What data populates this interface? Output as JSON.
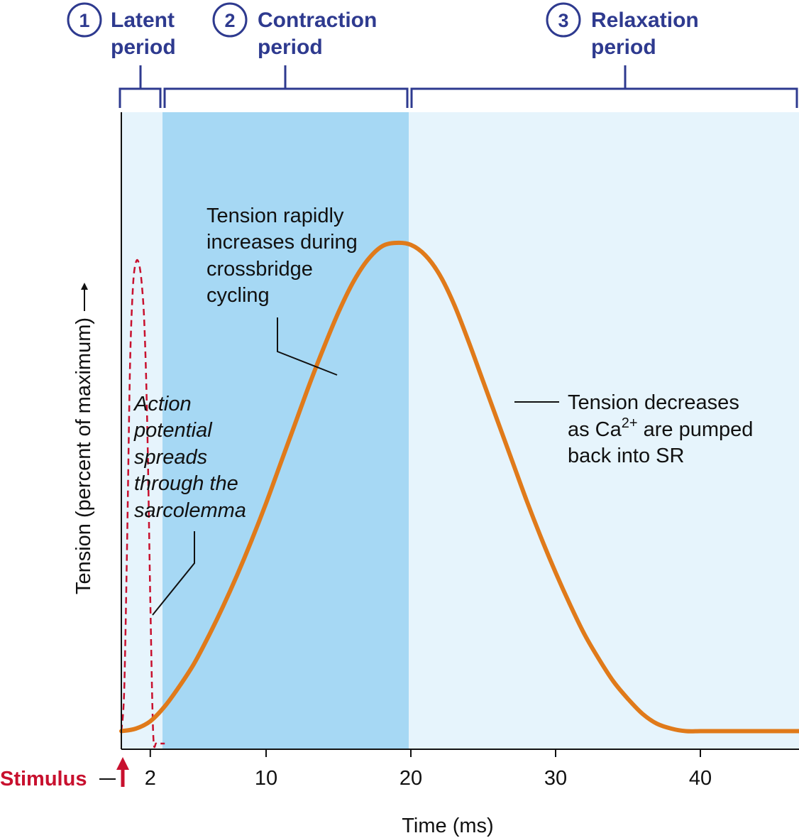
{
  "chart_data": {
    "type": "line",
    "xlabel": "Time (ms)",
    "ylabel": "Tension (percent of maximum)",
    "ylabel_arrow": "→",
    "x_ticks": [
      {
        "value": 2,
        "label": "2"
      },
      {
        "value": 10,
        "label": "10"
      },
      {
        "value": 20,
        "label": "20"
      },
      {
        "value": 30,
        "label": "30"
      },
      {
        "value": 40,
        "label": "40"
      }
    ],
    "xlim": [
      0,
      47
    ],
    "ylim": [
      0,
      100
    ],
    "series": [
      {
        "role": "muscle-tension",
        "color": "#e07a1a",
        "x": [
          0,
          1,
          2,
          3,
          4,
          5,
          6,
          7,
          8,
          9,
          10,
          11,
          12,
          13,
          14,
          15,
          16,
          17,
          18,
          19,
          20,
          21,
          22,
          23,
          24,
          25,
          26,
          27,
          28,
          29,
          30,
          31,
          32,
          33,
          34,
          35,
          36,
          37,
          38,
          39,
          40,
          41,
          42,
          43,
          44,
          45,
          46,
          47
        ],
        "y": [
          1.5,
          2,
          3.5,
          6.5,
          10.5,
          15,
          20.5,
          26.5,
          33,
          40,
          47.5,
          55.5,
          63.5,
          71.5,
          79,
          86,
          92,
          96.5,
          99.3,
          100,
          99.6,
          97.5,
          93.5,
          87.5,
          80,
          72,
          64,
          56,
          48,
          40.5,
          33.5,
          27,
          21,
          16,
          11.5,
          8,
          5,
          3,
          2,
          1.5,
          1.5,
          1.5,
          1.5,
          1.5,
          1.5,
          1.5,
          1.5,
          1.5
        ]
      },
      {
        "role": "action-potential",
        "color": "#c8102e",
        "style": "dashed",
        "x": [
          0,
          0.2,
          0.4,
          0.6,
          0.8,
          1.0,
          1.2,
          1.4,
          1.6,
          1.8,
          2.0,
          2.2,
          2.4,
          2.6,
          2.8,
          3.0
        ],
        "y": [
          1.5,
          10,
          40,
          75,
          91,
          96,
          96,
          92,
          83,
          62,
          28,
          1,
          -1,
          -1,
          -1,
          -1
        ]
      }
    ],
    "phases": [
      {
        "number": "1",
        "title_line1": "Latent",
        "title_line2": "period",
        "start": 0,
        "end": 3,
        "fill": "#e6f4fc"
      },
      {
        "number": "2",
        "title_line1": "Contraction",
        "title_line2": "period",
        "start": 3,
        "end": 20,
        "fill": "#a6d8f4"
      },
      {
        "number": "3",
        "title_line1": "Relaxation",
        "title_line2": "period",
        "start": 20,
        "end": 47,
        "fill": "#e6f4fc"
      }
    ],
    "annotations": {
      "rising": [
        "Tension rapidly",
        "increases during",
        "crossbridge",
        "cycling"
      ],
      "falling_line1": "Tension decreases",
      "falling_line2_pre": "as Ca",
      "falling_line2_sup": "2+",
      "falling_line2_post": " are pumped",
      "falling_line3": "back into SR",
      "action_potential": [
        "Action",
        "potential",
        "spreads",
        "through the",
        "sarcolemma"
      ]
    },
    "stimulus_label": "Stimulus",
    "colors": {
      "phase_text": "#2e3a8f",
      "stimulus": "#c8102e",
      "curve": "#e07a1a"
    }
  }
}
